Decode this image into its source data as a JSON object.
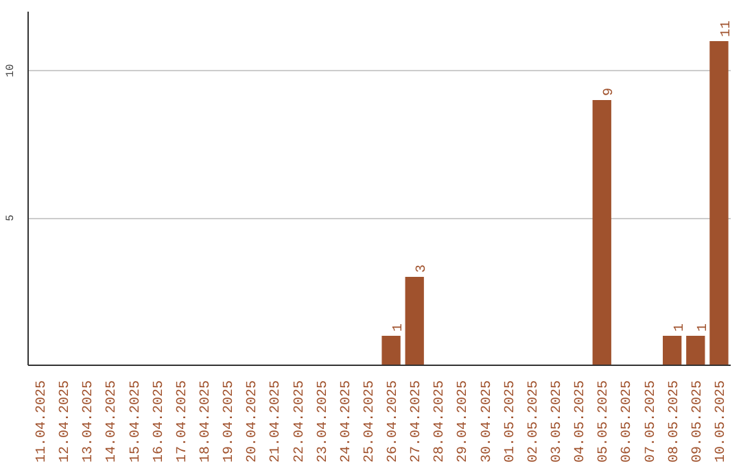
{
  "chart_data": {
    "type": "bar",
    "categories": [
      "11.04.2025",
      "12.04.2025",
      "13.04.2025",
      "14.04.2025",
      "15.04.2025",
      "16.04.2025",
      "17.04.2025",
      "18.04.2025",
      "19.04.2025",
      "20.04.2025",
      "21.04.2025",
      "22.04.2025",
      "23.04.2025",
      "24.04.2025",
      "25.04.2025",
      "26.04.2025",
      "27.04.2025",
      "28.04.2025",
      "29.04.2025",
      "30.04.2025",
      "01.05.2025",
      "02.05.2025",
      "03.05.2025",
      "04.05.2025",
      "05.05.2025",
      "06.05.2025",
      "07.05.2025",
      "08.05.2025",
      "09.05.2025",
      "10.05.2025"
    ],
    "values": [
      0,
      0,
      0,
      0,
      0,
      0,
      0,
      0,
      0,
      0,
      0,
      0,
      0,
      0,
      0,
      1,
      3,
      0,
      0,
      0,
      0,
      0,
      0,
      0,
      9,
      0,
      0,
      1,
      1,
      11
    ],
    "value_labels": [
      null,
      null,
      null,
      null,
      null,
      null,
      null,
      null,
      null,
      null,
      null,
      null,
      null,
      null,
      null,
      "1",
      "3",
      null,
      null,
      null,
      null,
      null,
      null,
      null,
      "9",
      null,
      null,
      "1",
      "1",
      "11"
    ],
    "color": "#a0522d",
    "ylim": [
      0,
      12
    ],
    "yticks": [
      5,
      10
    ],
    "grid": "y"
  }
}
